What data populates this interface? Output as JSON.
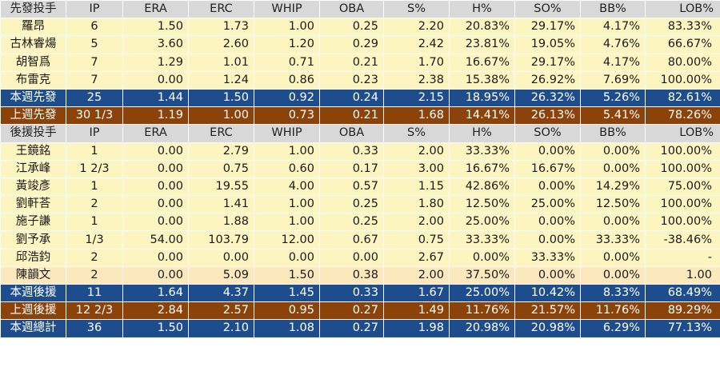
{
  "starter_header": {
    "label": "先發投手",
    "cols": [
      "IP",
      "ERA",
      "ERC",
      "WHIP",
      "OBA",
      "S%",
      "H%",
      "SO%",
      "BB%",
      "LOB%"
    ]
  },
  "starters": [
    {
      "name": "羅昂",
      "ip": "6",
      "era": "1.50",
      "erc": "1.73",
      "whip": "1.00",
      "oba": "0.25",
      "s": "2.20",
      "h": "20.83%",
      "so": "29.17%",
      "bb": "4.17%",
      "lob": "83.33%"
    },
    {
      "name": "古林睿煬",
      "ip": "5",
      "era": "3.60",
      "erc": "2.60",
      "whip": "1.20",
      "oba": "0.29",
      "s": "2.42",
      "h": "23.81%",
      "so": "19.05%",
      "bb": "4.76%",
      "lob": "66.67%"
    },
    {
      "name": "胡智爲",
      "ip": "7",
      "era": "1.29",
      "erc": "1.01",
      "whip": "0.71",
      "oba": "0.21",
      "s": "1.70",
      "h": "16.67%",
      "so": "29.17%",
      "bb": "4.17%",
      "lob": "80.00%"
    },
    {
      "name": "布雷克",
      "ip": "7",
      "era": "0.00",
      "erc": "1.24",
      "whip": "0.86",
      "oba": "0.23",
      "s": "2.38",
      "h": "15.38%",
      "so": "26.92%",
      "bb": "7.69%",
      "lob": "100.00%"
    }
  ],
  "starter_week": {
    "name": "本週先發",
    "ip": "25",
    "era": "1.44",
    "erc": "1.50",
    "whip": "0.92",
    "oba": "0.24",
    "s": "2.15",
    "h": "18.95%",
    "so": "26.32%",
    "bb": "5.26%",
    "lob": "82.61%"
  },
  "starter_lastweek": {
    "name": "上週先發",
    "ip": "30 1/3",
    "era": "1.19",
    "erc": "1.00",
    "whip": "0.73",
    "oba": "0.21",
    "s": "1.68",
    "h": "14.41%",
    "so": "26.13%",
    "bb": "5.41%",
    "lob": "78.26%"
  },
  "reliever_header": {
    "label": "後援投手",
    "cols": [
      "IP",
      "ERA",
      "ERC",
      "WHIP",
      "OBA",
      "S%",
      "H%",
      "SO%",
      "BB%",
      "LOB%"
    ]
  },
  "relievers": [
    {
      "name": "王鏡銘",
      "ip": "1",
      "era": "0.00",
      "erc": "2.79",
      "whip": "1.00",
      "oba": "0.33",
      "s": "2.00",
      "h": "33.33%",
      "so": "0.00%",
      "bb": "0.00%",
      "lob": "100.00%"
    },
    {
      "name": "江承峰",
      "ip": "1 2/3",
      "era": "0.00",
      "erc": "0.75",
      "whip": "0.60",
      "oba": "0.17",
      "s": "3.00",
      "h": "16.67%",
      "so": "16.67%",
      "bb": "0.00%",
      "lob": "100.00%"
    },
    {
      "name": "黃竣彥",
      "ip": "1",
      "era": "0.00",
      "erc": "19.55",
      "whip": "4.00",
      "oba": "0.57",
      "s": "1.15",
      "h": "42.86%",
      "so": "0.00%",
      "bb": "14.29%",
      "lob": "75.00%"
    },
    {
      "name": "劉軒荅",
      "ip": "2",
      "era": "0.00",
      "erc": "1.41",
      "whip": "1.00",
      "oba": "0.25",
      "s": "1.80",
      "h": "12.50%",
      "so": "25.00%",
      "bb": "12.50%",
      "lob": "100.00%"
    },
    {
      "name": "施子謙",
      "ip": "1",
      "era": "0.00",
      "erc": "1.88",
      "whip": "1.00",
      "oba": "0.25",
      "s": "2.00",
      "h": "25.00%",
      "so": "0.00%",
      "bb": "0.00%",
      "lob": "100.00%"
    },
    {
      "name": "劉予承",
      "ip": "1/3",
      "era": "54.00",
      "erc": "103.79",
      "whip": "12.00",
      "oba": "0.67",
      "s": "0.75",
      "h": "33.33%",
      "so": "0.00%",
      "bb": "33.33%",
      "lob": "-38.46%"
    },
    {
      "name": "邱浩鈞",
      "ip": "2",
      "era": "0.00",
      "erc": "0.00",
      "whip": "0.00",
      "oba": "0.00",
      "s": "2.67",
      "h": "0.00%",
      "so": "33.33%",
      "bb": "0.00%",
      "lob": "-"
    },
    {
      "name": "陳韻文",
      "ip": "2",
      "era": "0.00",
      "erc": "5.09",
      "whip": "1.50",
      "oba": "0.38",
      "s": "2.00",
      "h": "37.50%",
      "so": "0.00%",
      "bb": "0.00%",
      "lob": "1.00"
    }
  ],
  "reliever_week": {
    "name": "本週後援",
    "ip": "11",
    "era": "1.64",
    "erc": "4.37",
    "whip": "1.45",
    "oba": "0.33",
    "s": "1.67",
    "h": "25.00%",
    "so": "10.42%",
    "bb": "8.33%",
    "lob": "68.49%"
  },
  "reliever_lastweek": {
    "name": "上週後援",
    "ip": "12 2/3",
    "era": "2.84",
    "erc": "2.57",
    "whip": "0.95",
    "oba": "0.27",
    "s": "1.49",
    "h": "11.76%",
    "so": "21.57%",
    "bb": "11.76%",
    "lob": "89.29%"
  },
  "total_week": {
    "name": "本週總計",
    "ip": "36",
    "era": "1.50",
    "erc": "2.10",
    "whip": "1.08",
    "oba": "0.27",
    "s": "1.98",
    "h": "20.98%",
    "so": "20.98%",
    "bb": "6.29%",
    "lob": "77.13%"
  },
  "colors": {
    "header": "#d8d8d8",
    "data_row": "#fdf5c0",
    "week_row": "#1e4d8d",
    "lastweek_row": "#8b4309"
  }
}
